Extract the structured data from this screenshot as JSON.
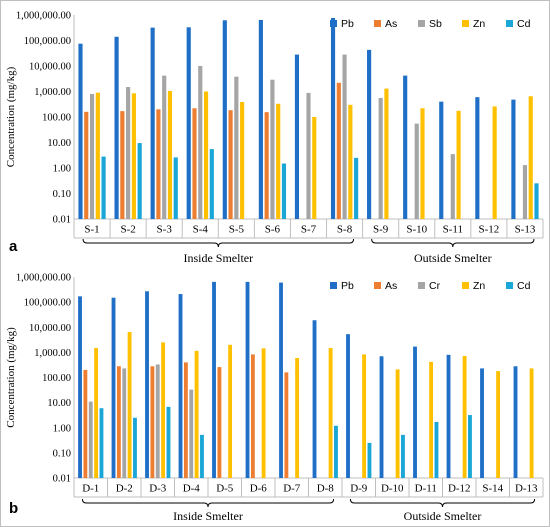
{
  "chart_data": [
    {
      "type": "bar",
      "panel_label": "a",
      "ylabel": "Concentration (mg/kg)",
      "yscale": "log",
      "ylim": [
        0.01,
        1000000
      ],
      "yticks": [
        "1,000,000.00",
        "100,000.00",
        "10,000.00",
        "1,000.00",
        "100.00",
        "10.00",
        "1.00",
        "0.10",
        "0.01"
      ],
      "categories": [
        "S-1",
        "S-2",
        "S-3",
        "S-4",
        "S-5",
        "S-6",
        "S-7",
        "S-8",
        "S-9",
        "S-10",
        "S-11",
        "S-12",
        "S-13"
      ],
      "series": [
        {
          "name": "Pb",
          "color": "#1F6FC6",
          "values": [
            75000,
            140000,
            320000,
            330000,
            620000,
            640000,
            28000,
            760000,
            43000,
            4200,
            400,
            600,
            480
          ]
        },
        {
          "name": "As",
          "color": "#ED7D31",
          "values": [
            160,
            170,
            200,
            220,
            185,
            155,
            null,
            2200,
            null,
            null,
            null,
            null,
            null
          ]
        },
        {
          "name": "Sb",
          "color": "#A5A5A5",
          "values": [
            800,
            1500,
            4200,
            10000,
            3800,
            2900,
            880,
            28000,
            560,
            55,
            3.5,
            null,
            1.3
          ]
        },
        {
          "name": "Zn",
          "color": "#FFC000",
          "values": [
            900,
            850,
            1050,
            1000,
            390,
            330,
            100,
            300,
            1300,
            220,
            175,
            260,
            650
          ]
        },
        {
          "name": "Cd",
          "color": "#1AA6D6",
          "values": [
            2.8,
            9.5,
            2.6,
            5.5,
            null,
            1.5,
            null,
            2.5,
            null,
            null,
            null,
            null,
            0.25
          ]
        }
      ],
      "groups": [
        {
          "label": "Inside Smelter",
          "from": 0,
          "to": 7
        },
        {
          "label": "Outside Smelter",
          "from": 8,
          "to": 12
        }
      ],
      "legend": "top-right",
      "grid": false
    },
    {
      "type": "bar",
      "panel_label": "b",
      "ylabel": "Concentration (mg/kg)",
      "yscale": "log",
      "ylim": [
        0.01,
        1000000
      ],
      "yticks": [
        "1,000,000.00",
        "100,000.00",
        "10,000.00",
        "1,000.00",
        "100.00",
        "10.00",
        "1.00",
        "0.10",
        "0.01"
      ],
      "categories": [
        "D-1",
        "D-2",
        "D-3",
        "D-4",
        "D-5",
        "D-6",
        "D-7",
        "D-8",
        "D-9",
        "D-10",
        "D-11",
        "D-12",
        "S-14",
        "D-13"
      ],
      "series": [
        {
          "name": "Pb",
          "color": "#1F6FC6",
          "values": [
            170000,
            150000,
            270000,
            210000,
            640000,
            640000,
            600000,
            19000,
            5300,
            700,
            1700,
            800,
            230,
            280
          ]
        },
        {
          "name": "As",
          "color": "#ED7D31",
          "values": [
            200,
            280,
            280,
            400,
            260,
            830,
            160,
            null,
            null,
            null,
            null,
            null,
            null,
            null
          ]
        },
        {
          "name": "Cr",
          "color": "#A5A5A5",
          "values": [
            11,
            230,
            330,
            33,
            null,
            null,
            null,
            null,
            null,
            null,
            null,
            null,
            null,
            null
          ]
        },
        {
          "name": "Zn",
          "color": "#FFC000",
          "values": [
            1500,
            6500,
            2500,
            1150,
            2000,
            1450,
            600,
            1500,
            830,
            210,
            420,
            720,
            180,
            230
          ]
        },
        {
          "name": "Cd",
          "color": "#1AA6D6",
          "values": [
            6,
            2.5,
            6.8,
            0.52,
            null,
            null,
            null,
            1.2,
            0.25,
            0.52,
            1.7,
            3.2,
            null,
            null
          ]
        }
      ],
      "groups": [
        {
          "label": "Inside Smelter",
          "from": 0,
          "to": 7
        },
        {
          "label": "Outside Smelter",
          "from": 8,
          "to": 13
        }
      ],
      "legend": "top-right",
      "grid": false
    }
  ]
}
